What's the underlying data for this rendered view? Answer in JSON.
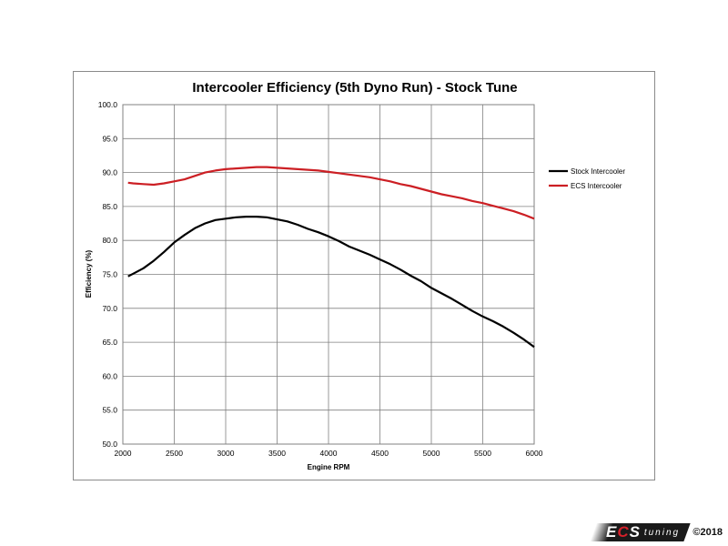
{
  "chart_data": {
    "type": "line",
    "title": "Intercooler Efficiency (5th Dyno Run) - Stock Tune",
    "xlabel": "Engine RPM",
    "ylabel": "Efficiency (%)",
    "xlim": [
      2000,
      6000
    ],
    "ylim": [
      50,
      100
    ],
    "xticks": [
      2000,
      2500,
      3000,
      3500,
      4000,
      4500,
      5000,
      5500,
      6000
    ],
    "yticks": [
      50,
      55,
      60,
      65,
      70,
      75,
      80,
      85,
      90,
      95,
      100
    ],
    "ytick_format": 1,
    "grid": true,
    "legend_position": "right",
    "x": [
      2050,
      2100,
      2200,
      2300,
      2400,
      2500,
      2600,
      2700,
      2800,
      2900,
      3000,
      3100,
      3200,
      3300,
      3400,
      3500,
      3600,
      3700,
      3800,
      3900,
      4000,
      4100,
      4200,
      4300,
      4400,
      4500,
      4600,
      4700,
      4800,
      4900,
      5000,
      5100,
      5200,
      5300,
      5400,
      5500,
      5600,
      5700,
      5800,
      5900,
      6000
    ],
    "series": [
      {
        "name": "Stock Intercooler",
        "color": "#000000",
        "values": [
          74.7,
          75.1,
          75.9,
          77.0,
          78.3,
          79.7,
          80.8,
          81.8,
          82.5,
          83.0,
          83.2,
          83.4,
          83.5,
          83.5,
          83.4,
          83.1,
          82.8,
          82.3,
          81.7,
          81.2,
          80.6,
          79.9,
          79.1,
          78.5,
          77.9,
          77.2,
          76.5,
          75.7,
          74.8,
          74.0,
          73.0,
          72.2,
          71.4,
          70.5,
          69.6,
          68.8,
          68.1,
          67.3,
          66.4,
          65.4,
          64.3
        ]
      },
      {
        "name": "ECS Intercooler",
        "color": "#cc1f24",
        "values": [
          88.5,
          88.4,
          88.3,
          88.2,
          88.4,
          88.7,
          89.0,
          89.5,
          90.0,
          90.3,
          90.5,
          90.6,
          90.7,
          90.8,
          90.8,
          90.7,
          90.6,
          90.5,
          90.4,
          90.3,
          90.1,
          89.9,
          89.7,
          89.5,
          89.3,
          89.0,
          88.7,
          88.3,
          88.0,
          87.6,
          87.2,
          86.8,
          86.5,
          86.2,
          85.8,
          85.5,
          85.1,
          84.7,
          84.3,
          83.8,
          83.2
        ]
      }
    ]
  },
  "watermark": {
    "logo_ecs": "ECS",
    "logo_tuning": "tuning",
    "copyright": "©2018"
  }
}
